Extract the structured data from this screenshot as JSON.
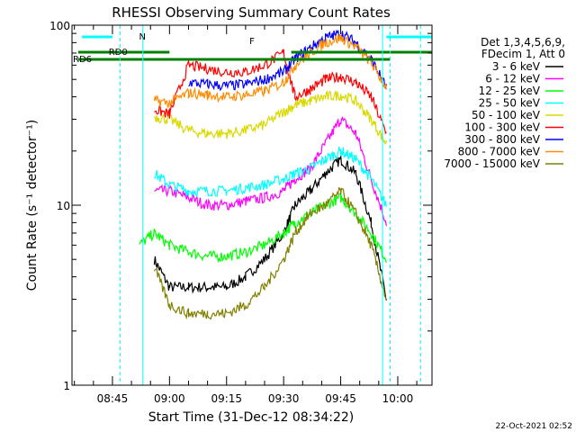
{
  "chart_data": {
    "type": "line",
    "title": "RHESSI Observing Summary Count Rates",
    "xlabel": "Start Time (31-Dec-12 08:34:22)",
    "ylabel": "Count Rate (s⁻¹ detector⁻¹)",
    "yscale": "log",
    "ylim": [
      1,
      100
    ],
    "xlim": [
      "08:34:22",
      "10:09:00"
    ],
    "x_ticks": [
      "08:45",
      "09:00",
      "09:15",
      "09:30",
      "09:45",
      "10:00"
    ],
    "y_ticks": [
      "1",
      "10",
      "100"
    ],
    "grid": false,
    "legend_header": [
      "Det 1,3,4,5,6,9,",
      "FDecim 1, Att 0"
    ],
    "legend_position": "right",
    "footer_date": "22-Oct-2021 02:52",
    "annotations": {
      "night_flag": "N",
      "rd_flags": [
        "RD0",
        "RD6"
      ],
      "flare_flag": "F"
    },
    "x": [
      "08:48",
      "08:52",
      "08:56",
      "09:00",
      "09:05",
      "09:10",
      "09:15",
      "09:20",
      "09:25",
      "09:30",
      "09:33",
      "09:37",
      "09:41",
      "09:45",
      "09:49",
      "09:53",
      "09:57"
    ],
    "series": [
      {
        "name": "3 - 6 keV",
        "color": "#000000",
        "values": [
          null,
          null,
          5,
          3.5,
          3.5,
          3.5,
          3.5,
          4,
          5,
          7,
          10,
          12,
          15,
          18,
          15,
          8,
          3
        ]
      },
      {
        "name": "6 - 12 keV",
        "color": "#ff00ff",
        "values": [
          null,
          null,
          12,
          12,
          11,
          10,
          10,
          10.5,
          11,
          12,
          14,
          16,
          22,
          30,
          25,
          14,
          8
        ]
      },
      {
        "name": "12 - 25 keV",
        "color": "#00ff00",
        "values": [
          null,
          6,
          7,
          6,
          5.5,
          5.2,
          5.2,
          5.5,
          6,
          7,
          8,
          9,
          10,
          11,
          9,
          7,
          5
        ]
      },
      {
        "name": "25 - 50 keV",
        "color": "#00ffff",
        "values": [
          null,
          null,
          15,
          13,
          12,
          12,
          12,
          12.5,
          13,
          14,
          15,
          16,
          18,
          20,
          18,
          14,
          10
        ]
      },
      {
        "name": "50 - 100 keV",
        "color": "#d9d900",
        "values": [
          null,
          null,
          31,
          30,
          26,
          25,
          25,
          26,
          28,
          33,
          36,
          38,
          40,
          41,
          38,
          30,
          22
        ]
      },
      {
        "name": "100 - 300 keV",
        "color": "#ff0000",
        "values": [
          null,
          null,
          34,
          32,
          60,
          57,
          55,
          55,
          60,
          70,
          40,
          44,
          50,
          52,
          48,
          40,
          25
        ]
      },
      {
        "name": "300 - 800 keV",
        "color": "#0000ff",
        "values": [
          null,
          null,
          null,
          null,
          48,
          47,
          46,
          47,
          50,
          55,
          65,
          75,
          85,
          90,
          80,
          65,
          45
        ]
      },
      {
        "name": "800 - 7000 keV",
        "color": "#ff8c00",
        "values": [
          null,
          null,
          38,
          37,
          42,
          41,
          40,
          41,
          43,
          48,
          60,
          70,
          80,
          85,
          76,
          62,
          45
        ]
      },
      {
        "name": "7000 - 15000 keV",
        "color": "#808000",
        "values": [
          null,
          null,
          4.5,
          2.8,
          2.5,
          2.5,
          2.5,
          2.8,
          3.5,
          5,
          7,
          9,
          10,
          12,
          9,
          6,
          3
        ]
      }
    ]
  }
}
